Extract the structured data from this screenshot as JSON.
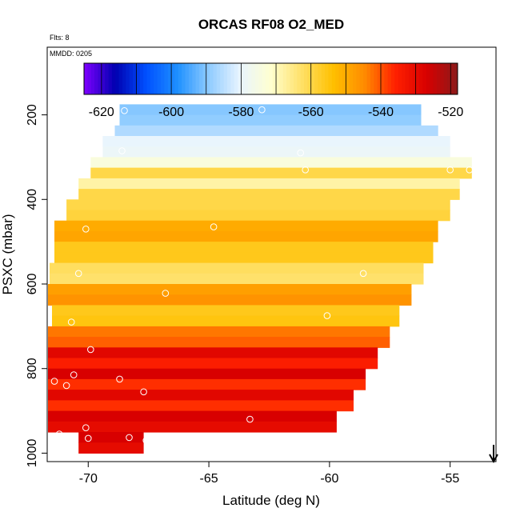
{
  "chart_data": {
    "type": "heatmap",
    "title": "ORCAS RF08 O2_MED",
    "flights_note": "Flts: 8",
    "date_note": "MMDD: 0205",
    "xlabel": "Latitude (deg N)",
    "ylabel": "PSXC (mbar)",
    "xlim": [
      -71.7,
      -53.1
    ],
    "ylim": [
      1020,
      40
    ],
    "x_ticks": [
      -70,
      -65,
      -60,
      -55
    ],
    "x_tick_labels": [
      "-70",
      "-65",
      "-60",
      "-55"
    ],
    "y_ticks": [
      200,
      400,
      600,
      800,
      1000
    ],
    "y_tick_labels": [
      "200",
      "400",
      "600",
      "800",
      "1000"
    ],
    "colorbar": {
      "min": -625,
      "max": -518,
      "ticks": [
        -620,
        -600,
        -580,
        -560,
        -540,
        -520
      ],
      "tick_labels": [
        "-620",
        "-600",
        "-580",
        "-560",
        "-540",
        "-520"
      ],
      "colors": [
        "#7f00ff",
        "#0000b0",
        "#0050ff",
        "#1e90ff",
        "#8ecbff",
        "#e8f4ff",
        "#ffffd0",
        "#ffe066",
        "#ffc000",
        "#ff8c00",
        "#ff2000",
        "#d80000",
        "#8b1a1a"
      ]
    },
    "bands": [
      {
        "p_top": 175,
        "p_bot": 200,
        "lat_min": -68.7,
        "lat_max": -56.2,
        "value": -590
      },
      {
        "p_top": 200,
        "p_bot": 225,
        "lat_min": -68.7,
        "lat_max": -56.2,
        "value": -589
      },
      {
        "p_top": 225,
        "p_bot": 250,
        "lat_min": -68.9,
        "lat_max": -55.5,
        "value": -586
      },
      {
        "p_top": 250,
        "p_bot": 275,
        "lat_min": -69.4,
        "lat_max": -55.0,
        "value": -580
      },
      {
        "p_top": 275,
        "p_bot": 300,
        "lat_min": -69.4,
        "lat_max": -55.0,
        "value": -579
      },
      {
        "p_top": 300,
        "p_bot": 325,
        "lat_min": -69.9,
        "lat_max": -54.1,
        "value": -574
      },
      {
        "p_top": 325,
        "p_bot": 350,
        "lat_min": -69.9,
        "lat_max": -54.1,
        "value": -560
      },
      {
        "p_top": 350,
        "p_bot": 375,
        "lat_min": -70.4,
        "lat_max": -54.6,
        "value": -568
      },
      {
        "p_top": 375,
        "p_bot": 400,
        "lat_min": -70.4,
        "lat_max": -54.6,
        "value": -560
      },
      {
        "p_top": 400,
        "p_bot": 425,
        "lat_min": -70.9,
        "lat_max": -55.0,
        "value": -560
      },
      {
        "p_top": 425,
        "p_bot": 450,
        "lat_min": -70.9,
        "lat_max": -55.0,
        "value": -559
      },
      {
        "p_top": 450,
        "p_bot": 475,
        "lat_min": -71.4,
        "lat_max": -55.5,
        "value": -550
      },
      {
        "p_top": 475,
        "p_bot": 500,
        "lat_min": -71.4,
        "lat_max": -55.5,
        "value": -549
      },
      {
        "p_top": 500,
        "p_bot": 525,
        "lat_min": -71.4,
        "lat_max": -55.7,
        "value": -556
      },
      {
        "p_top": 525,
        "p_bot": 550,
        "lat_min": -71.4,
        "lat_max": -55.7,
        "value": -556
      },
      {
        "p_top": 550,
        "p_bot": 575,
        "lat_min": -71.6,
        "lat_max": -56.1,
        "value": -562
      },
      {
        "p_top": 575,
        "p_bot": 600,
        "lat_min": -71.6,
        "lat_max": -56.1,
        "value": -563
      },
      {
        "p_top": 600,
        "p_bot": 625,
        "lat_min": -71.7,
        "lat_max": -56.6,
        "value": -548
      },
      {
        "p_top": 625,
        "p_bot": 650,
        "lat_min": -71.7,
        "lat_max": -56.6,
        "value": -546
      },
      {
        "p_top": 650,
        "p_bot": 675,
        "lat_min": -71.5,
        "lat_max": -57.1,
        "value": -556
      },
      {
        "p_top": 675,
        "p_bot": 700,
        "lat_min": -71.5,
        "lat_max": -57.1,
        "value": -555
      },
      {
        "p_top": 700,
        "p_bot": 725,
        "lat_min": -72.2,
        "lat_max": -57.5,
        "value": -543
      },
      {
        "p_top": 725,
        "p_bot": 750,
        "lat_min": -72.2,
        "lat_max": -57.5,
        "value": -541
      },
      {
        "p_top": 750,
        "p_bot": 775,
        "lat_min": -72.7,
        "lat_max": -58.0,
        "value": -529
      },
      {
        "p_top": 775,
        "p_bot": 800,
        "lat_min": -72.7,
        "lat_max": -58.0,
        "value": -535
      },
      {
        "p_top": 800,
        "p_bot": 825,
        "lat_min": -72.9,
        "lat_max": -58.5,
        "value": -527
      },
      {
        "p_top": 825,
        "p_bot": 850,
        "lat_min": -72.9,
        "lat_max": -58.5,
        "value": -537
      },
      {
        "p_top": 850,
        "p_bot": 875,
        "lat_min": -72.9,
        "lat_max": -59.0,
        "value": -529
      },
      {
        "p_top": 875,
        "p_bot": 900,
        "lat_min": -72.9,
        "lat_max": -59.0,
        "value": -537
      },
      {
        "p_top": 900,
        "p_bot": 925,
        "lat_min": -72.9,
        "lat_max": -59.7,
        "value": -527
      },
      {
        "p_top": 925,
        "p_bot": 950,
        "lat_min": -72.9,
        "lat_max": -59.7,
        "value": -530
      },
      {
        "p_top": 950,
        "p_bot": 975,
        "lat_min": -70.4,
        "lat_max": -67.7,
        "value": -527
      },
      {
        "p_top": 975,
        "p_bot": 1000,
        "lat_min": -70.4,
        "lat_max": -67.7,
        "value": -530
      }
    ],
    "markers": [
      {
        "lat": -68.5,
        "p": 190
      },
      {
        "lat": -62.8,
        "p": 188
      },
      {
        "lat": -56.0,
        "p": 187
      },
      {
        "lat": -68.6,
        "p": 285
      },
      {
        "lat": -61.2,
        "p": 290
      },
      {
        "lat": -61.0,
        "p": 330
      },
      {
        "lat": -55.0,
        "p": 330
      },
      {
        "lat": -54.2,
        "p": 330
      },
      {
        "lat": -70.1,
        "p": 470
      },
      {
        "lat": -64.8,
        "p": 465
      },
      {
        "lat": -70.4,
        "p": 575
      },
      {
        "lat": -58.6,
        "p": 575
      },
      {
        "lat": -66.8,
        "p": 622
      },
      {
        "lat": -70.7,
        "p": 690
      },
      {
        "lat": -60.1,
        "p": 675
      },
      {
        "lat": -69.9,
        "p": 755
      },
      {
        "lat": -71.4,
        "p": 830
      },
      {
        "lat": -70.6,
        "p": 815
      },
      {
        "lat": -70.9,
        "p": 840
      },
      {
        "lat": -68.7,
        "p": 825
      },
      {
        "lat": -67.7,
        "p": 855
      },
      {
        "lat": -63.3,
        "p": 920
      },
      {
        "lat": -59.5,
        "p": 925
      },
      {
        "lat": -70.1,
        "p": 940
      },
      {
        "lat": -71.2,
        "p": 955
      },
      {
        "lat": -70.0,
        "p": 965
      },
      {
        "lat": -68.3,
        "p": 963
      },
      {
        "lat": -67.6,
        "p": 970
      }
    ],
    "arrow": {
      "lat": -53.2,
      "direction": "down"
    }
  }
}
